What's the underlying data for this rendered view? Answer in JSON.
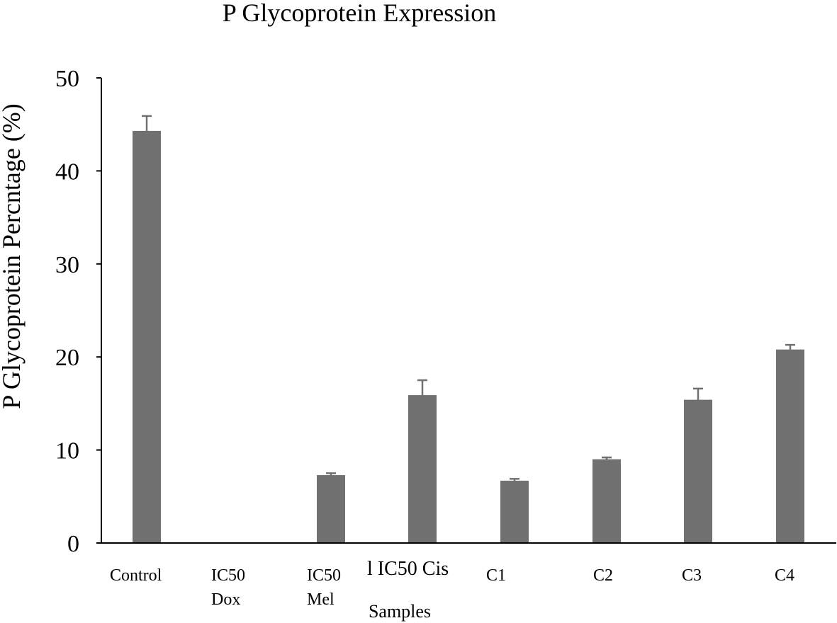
{
  "chart_data": {
    "type": "bar",
    "title": "P Glycoprotein Expression",
    "xlabel": "Samples",
    "ylabel": "P Glycoprotein Percntage (%)",
    "ylim": [
      0,
      50
    ],
    "yticks": [
      0,
      10,
      20,
      30,
      40,
      50
    ],
    "categories": [
      [
        "Control"
      ],
      [
        "IC50",
        "Dox"
      ],
      [
        "IC50",
        "Mel"
      ],
      [
        "l  IC50 Cis"
      ],
      [
        "C1"
      ],
      [
        "C2"
      ],
      [
        "C3"
      ],
      [
        "C4"
      ]
    ],
    "values": [
      44.3,
      0,
      7.3,
      15.9,
      6.7,
      9.0,
      15.4,
      20.8
    ],
    "errors": [
      1.6,
      0,
      0.2,
      1.6,
      0.2,
      0.2,
      1.2,
      0.5
    ],
    "grid": false,
    "bar_color": "#707070",
    "error_color": "#707070"
  }
}
